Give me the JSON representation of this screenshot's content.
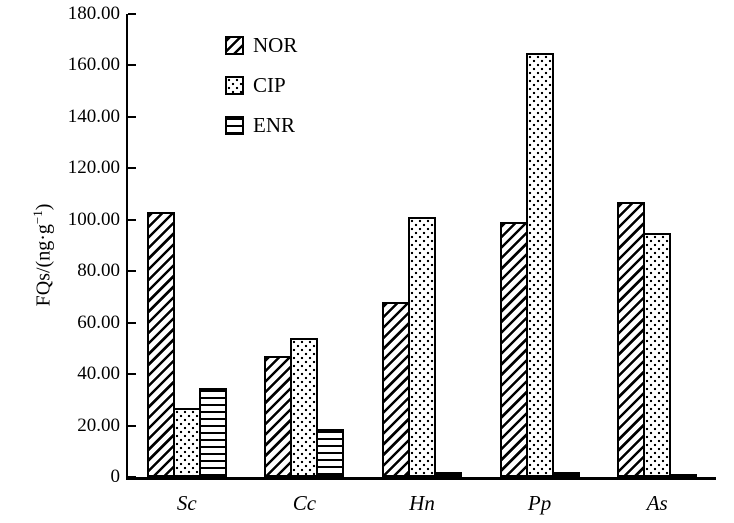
{
  "chart_data": {
    "type": "bar",
    "title": "",
    "xlabel": "",
    "ylabel": "FQs/(ng·g⁻¹)",
    "ylabel_parts": {
      "prefix": "FQs/(ng·g",
      "exponent": "−1",
      "suffix": ")"
    },
    "categories": [
      "Sc",
      "Cc",
      "Hn",
      "Pp",
      "As"
    ],
    "series": [
      {
        "name": "NOR",
        "pattern": "diagonal-hatch",
        "values": [
          103,
          47,
          68,
          99,
          107
        ]
      },
      {
        "name": "CIP",
        "pattern": "dots",
        "values": [
          27,
          54,
          101,
          165,
          95
        ]
      },
      {
        "name": "ENR",
        "pattern": "horizontal-lines",
        "values": [
          34.5,
          18.5,
          2,
          2,
          1
        ]
      }
    ],
    "ylim": [
      0,
      180
    ],
    "yticks": [
      {
        "value": 0,
        "label": "0"
      },
      {
        "value": 20,
        "label": "20.00"
      },
      {
        "value": 40,
        "label": "40.00"
      },
      {
        "value": 60,
        "label": "60.00"
      },
      {
        "value": 80,
        "label": "80.00"
      },
      {
        "value": 100,
        "label": "100.00"
      },
      {
        "value": 120,
        "label": "120.00"
      },
      {
        "value": 140,
        "label": "140.00"
      },
      {
        "value": 160,
        "label": "160.00"
      },
      {
        "value": 180,
        "label": "180.00"
      }
    ],
    "grid": false,
    "legend_position": "inside-top-left",
    "bar_style": {
      "fill": "#ffffff",
      "stroke": "#000000"
    }
  }
}
